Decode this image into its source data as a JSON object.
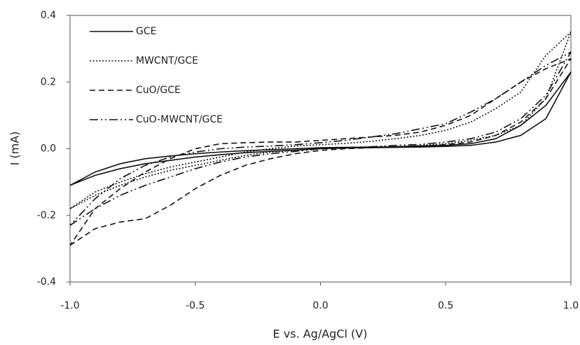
{
  "chart_data": {
    "type": "line",
    "xlabel": "E vs. Ag/AgCl (V)",
    "ylabel": "I (mA)",
    "x": [
      -1.0,
      -0.9,
      -0.8,
      -0.7,
      -0.6,
      -0.5,
      -0.4,
      -0.3,
      -0.2,
      -0.1,
      0.0,
      0.1,
      0.2,
      0.3,
      0.4,
      0.5,
      0.6,
      0.7,
      0.8,
      0.9,
      1.0,
      0.9,
      0.8,
      0.7,
      0.6,
      0.5,
      0.4,
      0.3,
      0.2,
      0.1,
      0.0,
      -0.1,
      -0.2,
      -0.3,
      -0.4,
      -0.5,
      -0.6,
      -0.7,
      -0.8,
      -0.9,
      -1.0
    ],
    "series": [
      {
        "name": "GCE",
        "color": "#111111",
        "dash": "solid",
        "values": [
          -0.11,
          -0.08,
          -0.06,
          -0.045,
          -0.035,
          -0.025,
          -0.018,
          -0.012,
          -0.008,
          -0.004,
          0.0,
          0.002,
          0.003,
          0.004,
          0.005,
          0.007,
          0.01,
          0.02,
          0.04,
          0.09,
          0.23,
          0.13,
          0.07,
          0.03,
          0.015,
          0.01,
          0.008,
          0.006,
          0.005,
          0.004,
          0.003,
          0.0,
          -0.003,
          -0.006,
          -0.01,
          -0.015,
          -0.022,
          -0.03,
          -0.045,
          -0.07,
          -0.11
        ]
      },
      {
        "name": "MWCNT/GCE",
        "color": "#111111",
        "dash": "dotted",
        "values": [
          -0.18,
          -0.14,
          -0.11,
          -0.085,
          -0.065,
          -0.05,
          -0.035,
          -0.02,
          -0.01,
          -0.005,
          0.0,
          0.002,
          0.004,
          0.006,
          0.01,
          0.015,
          0.025,
          0.04,
          0.07,
          0.15,
          0.35,
          0.28,
          0.17,
          0.12,
          0.08,
          0.055,
          0.04,
          0.03,
          0.022,
          0.016,
          0.012,
          0.008,
          0.0,
          -0.01,
          -0.025,
          -0.04,
          -0.055,
          -0.075,
          -0.1,
          -0.13,
          -0.18
        ]
      },
      {
        "name": "CuO/GCE",
        "color": "#111111",
        "dash": "dashed",
        "values": [
          -0.29,
          -0.24,
          -0.22,
          -0.21,
          -0.17,
          -0.12,
          -0.08,
          -0.05,
          -0.03,
          -0.015,
          -0.005,
          0.0,
          0.003,
          0.005,
          0.008,
          0.012,
          0.02,
          0.04,
          0.08,
          0.15,
          0.27,
          0.24,
          0.2,
          0.15,
          0.1,
          0.07,
          0.05,
          0.04,
          0.035,
          0.03,
          0.025,
          0.02,
          0.02,
          0.018,
          0.015,
          0.0,
          -0.03,
          -0.07,
          -0.12,
          -0.18,
          -0.29
        ]
      },
      {
        "name": "CuO-MWCNT/GCE",
        "color": "#111111",
        "dash": "dashdotdot",
        "values": [
          -0.23,
          -0.18,
          -0.14,
          -0.11,
          -0.085,
          -0.06,
          -0.04,
          -0.025,
          -0.015,
          -0.008,
          0.0,
          0.003,
          0.006,
          0.01,
          0.013,
          0.02,
          0.03,
          0.05,
          0.09,
          0.16,
          0.29,
          0.25,
          0.2,
          0.15,
          0.11,
          0.075,
          0.06,
          0.045,
          0.035,
          0.025,
          0.018,
          0.012,
          0.008,
          0.005,
          0.0,
          -0.01,
          -0.025,
          -0.05,
          -0.09,
          -0.15,
          -0.23
        ]
      }
    ],
    "xlim": [
      -1,
      1
    ],
    "xticks": [
      {
        "value": -1,
        "label": "-1.0"
      },
      -0.5,
      {
        "value": 0,
        "label": "0.0"
      },
      0.5,
      {
        "value": 1,
        "label": "1.0"
      }
    ],
    "ylim": [
      -0.4,
      0.4
    ],
    "yticks": [
      -0.4,
      -0.2,
      {
        "value": 0,
        "label": "0.0"
      },
      0.2,
      0.4
    ],
    "grid": false,
    "legend": "upper left"
  }
}
